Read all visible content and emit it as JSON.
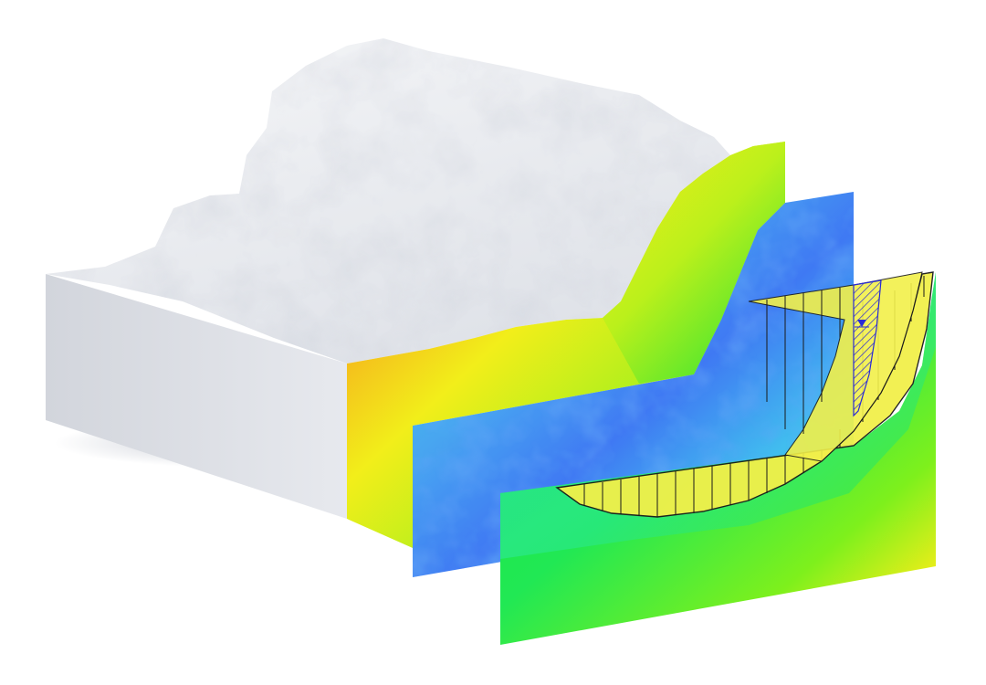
{
  "colors": {
    "background": "#ffffff",
    "terrain_snow": "#eceef2",
    "terrain_side_left": "#d8dbe1",
    "terrain_side_front": "#f1f2f5",
    "contour_red": "#f0451d",
    "contour_orange": "#f5a21e",
    "contour_yellow": "#f2ee1a",
    "contour_green": "#19e63a",
    "contour_cyan": "#2fd6e6",
    "contour_blue": "#2f6ef2",
    "slip_fill": "#f2f04a",
    "slip_lines": "#1a1a1a",
    "water_hatch": "#2a2ad6"
  },
  "scene": {
    "terrain_block": "terrain-block",
    "section_panels": [
      "contour-panel-terrain-face",
      "contour-panel-middle",
      "contour-panel-front"
    ],
    "slip_surface": "slip-surface-slices",
    "water_table": "water-table-marker"
  }
}
